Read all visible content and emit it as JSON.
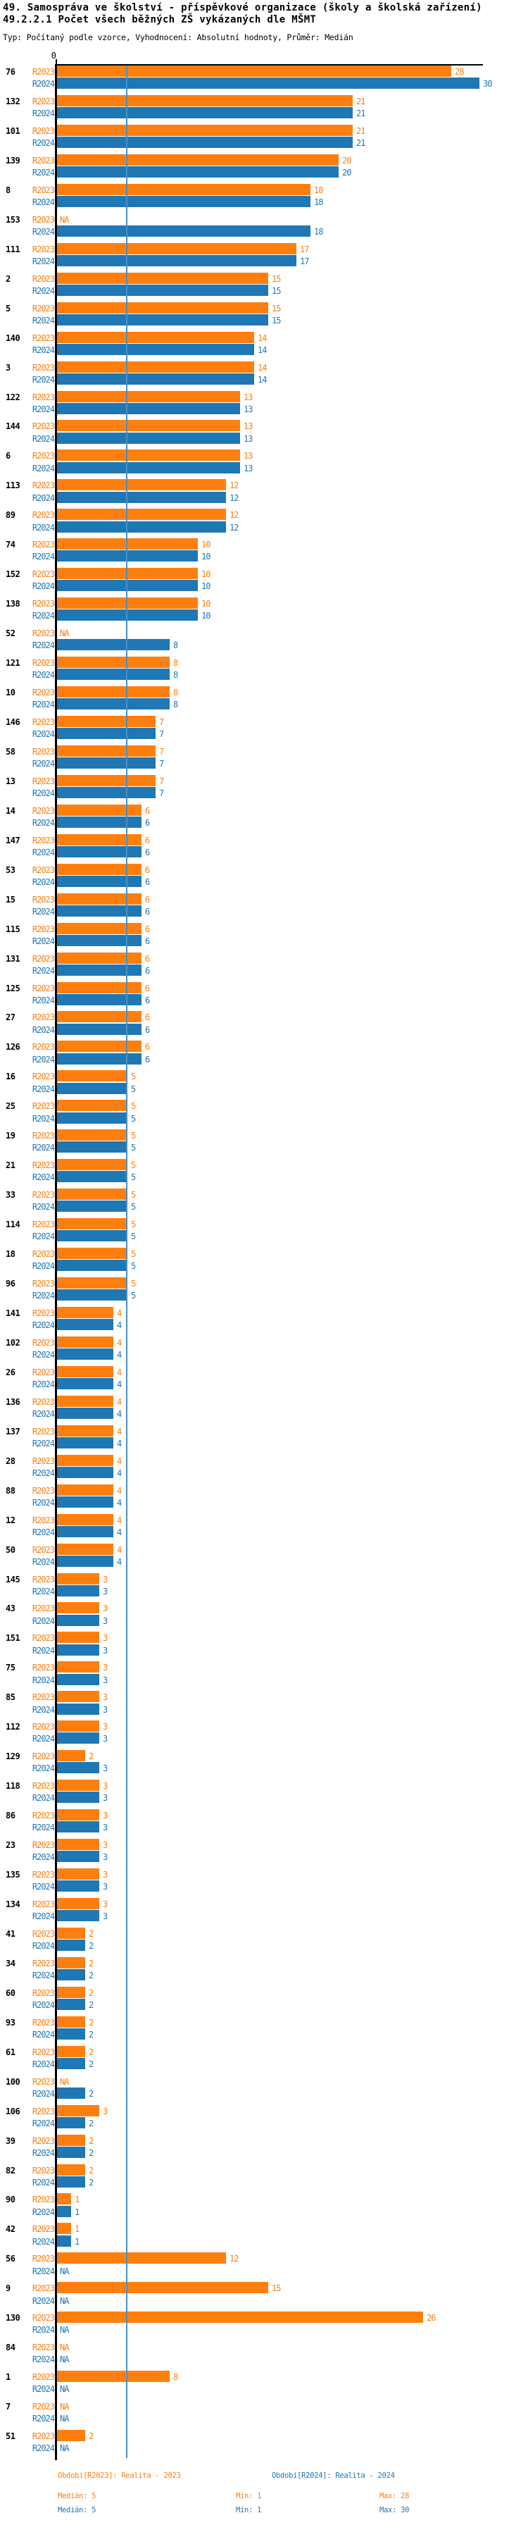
{
  "title": {
    "line1": "49. Samospráva ve školství - příspěvkové organizace (školy a školská zařízení)",
    "line2": "49.2.2.1 Počet všech běžných ZŠ vykázaných dle MŠMT",
    "meta": "Typ: Počítaný podle vzorce, Vyhodnocení: Absolutní hodnoty, Průměr: Medián"
  },
  "axis": {
    "zero_label": "0"
  },
  "series_labels": {
    "r2023": "R2023",
    "r2024": "R2024",
    "na": "NA"
  },
  "colors": {
    "r2023": "#ff7f0e",
    "r2024": "#1f77b4",
    "median_line": "#4a90c2",
    "axis": "#000000"
  },
  "chart_data": {
    "type": "bar",
    "orientation": "horizontal",
    "series": [
      "R2023",
      "R2024"
    ],
    "xlim": [
      0,
      30
    ],
    "median_reference": 5,
    "grid": false,
    "groups": [
      {
        "label": "76",
        "r2023": 28,
        "r2024": 30
      },
      {
        "label": "132",
        "r2023": 21,
        "r2024": 21
      },
      {
        "label": "101",
        "r2023": 21,
        "r2024": 21
      },
      {
        "label": "139",
        "r2023": 20,
        "r2024": 20
      },
      {
        "label": "8",
        "r2023": 18,
        "r2024": 18
      },
      {
        "label": "153",
        "r2023": null,
        "r2024": 18
      },
      {
        "label": "111",
        "r2023": 17,
        "r2024": 17
      },
      {
        "label": "2",
        "r2023": 15,
        "r2024": 15
      },
      {
        "label": "5",
        "r2023": 15,
        "r2024": 15
      },
      {
        "label": "140",
        "r2023": 14,
        "r2024": 14
      },
      {
        "label": "3",
        "r2023": 14,
        "r2024": 14
      },
      {
        "label": "122",
        "r2023": 13,
        "r2024": 13
      },
      {
        "label": "144",
        "r2023": 13,
        "r2024": 13
      },
      {
        "label": "6",
        "r2023": 13,
        "r2024": 13
      },
      {
        "label": "113",
        "r2023": 12,
        "r2024": 12
      },
      {
        "label": "89",
        "r2023": 12,
        "r2024": 12
      },
      {
        "label": "74",
        "r2023": 10,
        "r2024": 10
      },
      {
        "label": "152",
        "r2023": 10,
        "r2024": 10
      },
      {
        "label": "138",
        "r2023": 10,
        "r2024": 10
      },
      {
        "label": "52",
        "r2023": null,
        "r2024": 8
      },
      {
        "label": "121",
        "r2023": 8,
        "r2024": 8
      },
      {
        "label": "10",
        "r2023": 8,
        "r2024": 8
      },
      {
        "label": "146",
        "r2023": 7,
        "r2024": 7
      },
      {
        "label": "58",
        "r2023": 7,
        "r2024": 7
      },
      {
        "label": "13",
        "r2023": 7,
        "r2024": 7
      },
      {
        "label": "14",
        "r2023": 6,
        "r2024": 6
      },
      {
        "label": "147",
        "r2023": 6,
        "r2024": 6
      },
      {
        "label": "53",
        "r2023": 6,
        "r2024": 6
      },
      {
        "label": "15",
        "r2023": 6,
        "r2024": 6
      },
      {
        "label": "115",
        "r2023": 6,
        "r2024": 6
      },
      {
        "label": "131",
        "r2023": 6,
        "r2024": 6
      },
      {
        "label": "125",
        "r2023": 6,
        "r2024": 6
      },
      {
        "label": "27",
        "r2023": 6,
        "r2024": 6
      },
      {
        "label": "126",
        "r2023": 6,
        "r2024": 6
      },
      {
        "label": "16",
        "r2023": 5,
        "r2024": 5
      },
      {
        "label": "25",
        "r2023": 5,
        "r2024": 5
      },
      {
        "label": "19",
        "r2023": 5,
        "r2024": 5
      },
      {
        "label": "21",
        "r2023": 5,
        "r2024": 5
      },
      {
        "label": "33",
        "r2023": 5,
        "r2024": 5
      },
      {
        "label": "114",
        "r2023": 5,
        "r2024": 5
      },
      {
        "label": "18",
        "r2023": 5,
        "r2024": 5
      },
      {
        "label": "96",
        "r2023": 5,
        "r2024": 5
      },
      {
        "label": "141",
        "r2023": 4,
        "r2024": 4
      },
      {
        "label": "102",
        "r2023": 4,
        "r2024": 4
      },
      {
        "label": "26",
        "r2023": 4,
        "r2024": 4
      },
      {
        "label": "136",
        "r2023": 4,
        "r2024": 4
      },
      {
        "label": "137",
        "r2023": 4,
        "r2024": 4
      },
      {
        "label": "28",
        "r2023": 4,
        "r2024": 4
      },
      {
        "label": "88",
        "r2023": 4,
        "r2024": 4
      },
      {
        "label": "12",
        "r2023": 4,
        "r2024": 4
      },
      {
        "label": "50",
        "r2023": 4,
        "r2024": 4
      },
      {
        "label": "145",
        "r2023": 3,
        "r2024": 3
      },
      {
        "label": "43",
        "r2023": 3,
        "r2024": 3
      },
      {
        "label": "151",
        "r2023": 3,
        "r2024": 3
      },
      {
        "label": "75",
        "r2023": 3,
        "r2024": 3
      },
      {
        "label": "85",
        "r2023": 3,
        "r2024": 3
      },
      {
        "label": "112",
        "r2023": 3,
        "r2024": 3
      },
      {
        "label": "129",
        "r2023": 2,
        "r2024": 3
      },
      {
        "label": "118",
        "r2023": 3,
        "r2024": 3
      },
      {
        "label": "86",
        "r2023": 3,
        "r2024": 3
      },
      {
        "label": "23",
        "r2023": 3,
        "r2024": 3
      },
      {
        "label": "135",
        "r2023": 3,
        "r2024": 3
      },
      {
        "label": "134",
        "r2023": 3,
        "r2024": 3
      },
      {
        "label": "41",
        "r2023": 2,
        "r2024": 2
      },
      {
        "label": "34",
        "r2023": 2,
        "r2024": 2
      },
      {
        "label": "60",
        "r2023": 2,
        "r2024": 2
      },
      {
        "label": "93",
        "r2023": 2,
        "r2024": 2
      },
      {
        "label": "61",
        "r2023": 2,
        "r2024": 2
      },
      {
        "label": "100",
        "r2023": null,
        "r2024": 2
      },
      {
        "label": "106",
        "r2023": 3,
        "r2024": 2
      },
      {
        "label": "39",
        "r2023": 2,
        "r2024": 2
      },
      {
        "label": "82",
        "r2023": 2,
        "r2024": 2
      },
      {
        "label": "90",
        "r2023": 1,
        "r2024": 1
      },
      {
        "label": "42",
        "r2023": 1,
        "r2024": 1
      },
      {
        "label": "56",
        "r2023": 12,
        "r2024": null
      },
      {
        "label": "9",
        "r2023": 15,
        "r2024": null
      },
      {
        "label": "130",
        "r2023": 26,
        "r2024": null
      },
      {
        "label": "84",
        "r2023": null,
        "r2024": null
      },
      {
        "label": "1",
        "r2023": 8,
        "r2024": null
      },
      {
        "label": "7",
        "r2023": null,
        "r2024": null
      },
      {
        "label": "51",
        "r2023": 2,
        "r2024": null
      }
    ]
  },
  "footer": {
    "period_2023": "Období[R2023]: Realita - 2023",
    "period_2024": "Období[R2024]: Realita - 2024",
    "median_2023": "Medián: 5",
    "min_2023": "Min: 1",
    "max_2023": "Max: 28",
    "median_2024": "Medián: 5",
    "min_2024": "Min: 1",
    "max_2024": "Max: 30"
  }
}
